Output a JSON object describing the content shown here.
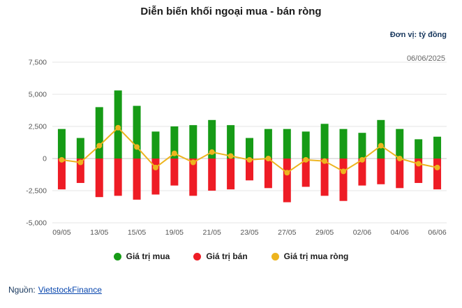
{
  "header": {
    "title": "Diễn biến khối ngoại mua - bán ròng",
    "unit_label": "Đơn vị: tỷ đồng",
    "date_label": "06/06/2025"
  },
  "legend": [
    {
      "label": "Giá trị mua",
      "color": "#169b16"
    },
    {
      "label": "Giá trị bán",
      "color": "#ee1c25"
    },
    {
      "label": "Giá trị mua ròng",
      "color": "#edb41e"
    }
  ],
  "footer": {
    "source_label": "Nguồn:",
    "source_link": "VietstockFinance"
  },
  "chart_data": {
    "type": "bar",
    "x_tick_labels": [
      "09/05",
      "13/05",
      "15/05",
      "19/05",
      "21/05",
      "23/05",
      "27/05",
      "29/05",
      "02/06",
      "04/06",
      "06/06"
    ],
    "x_tick_every": 2,
    "series": [
      {
        "name": "Giá trị mua",
        "type": "bar",
        "color": "#169b16",
        "values": [
          2300,
          1600,
          4000,
          5300,
          4100,
          2100,
          2500,
          2600,
          3000,
          2600,
          1600,
          2300,
          2300,
          2100,
          2700,
          2300,
          2000,
          3000,
          2300,
          1500,
          1700
        ]
      },
      {
        "name": "Giá trị bán",
        "type": "bar",
        "color": "#ee1c25",
        "values": [
          -2400,
          -1900,
          -3000,
          -2900,
          -3200,
          -2800,
          -2100,
          -2900,
          -2500,
          -2400,
          -1700,
          -2300,
          -3400,
          -2200,
          -2900,
          -3300,
          -2100,
          -2000,
          -2300,
          -1900,
          -2400
        ]
      },
      {
        "name": "Giá trị mua ròng",
        "type": "line",
        "color": "#edb41e",
        "values": [
          -100,
          -300,
          1000,
          2400,
          900,
          -700,
          400,
          -300,
          500,
          200,
          -100,
          0,
          -1100,
          -100,
          -200,
          -1000,
          -100,
          1000,
          0,
          -400,
          -700
        ]
      }
    ],
    "ylim": [
      -5000,
      7500
    ],
    "ytick_step": 2500,
    "grid": true,
    "legend_position": "bottom"
  }
}
